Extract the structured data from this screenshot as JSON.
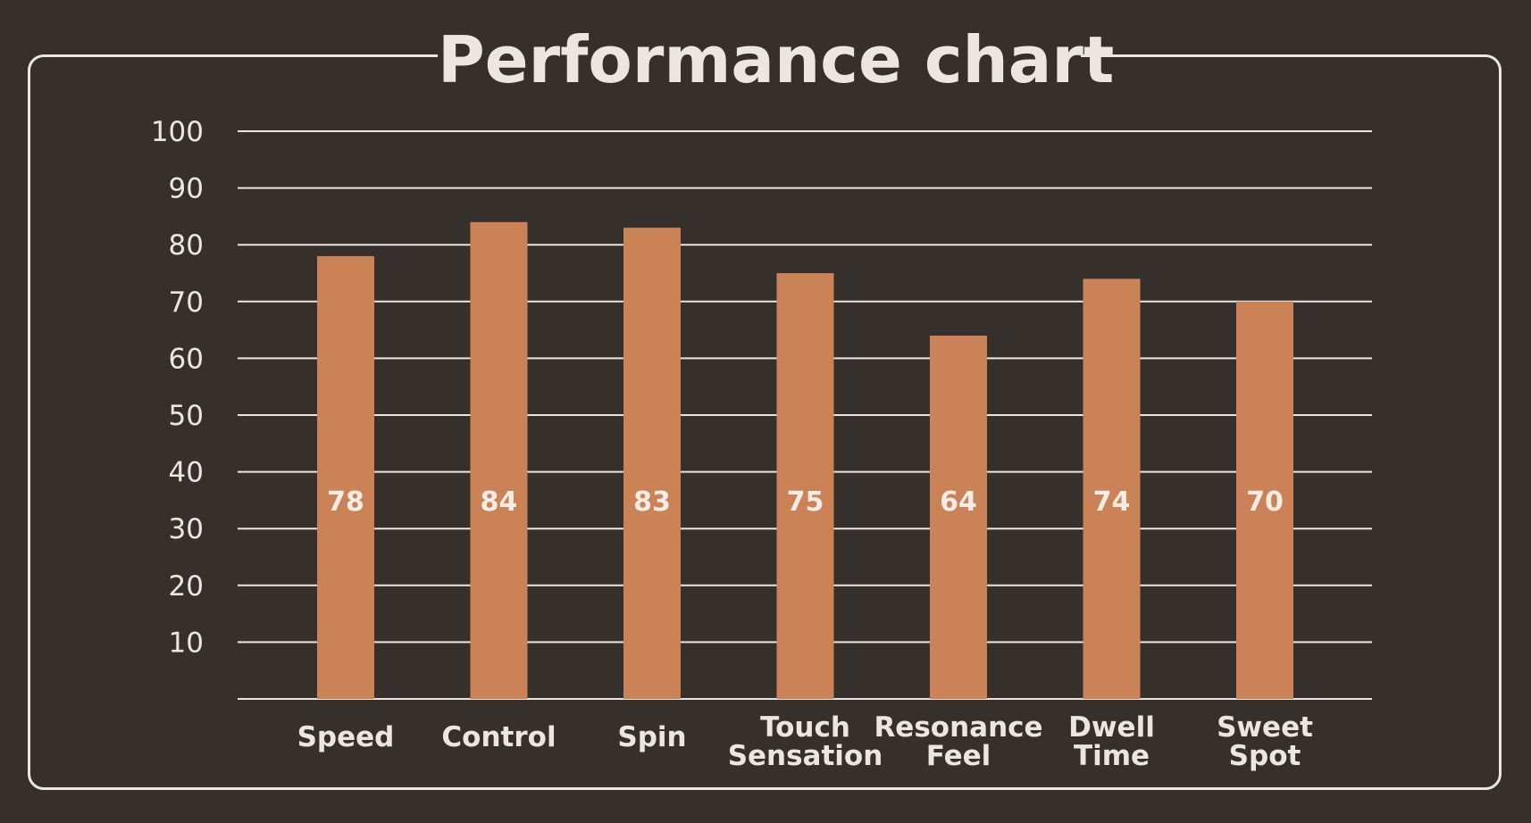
{
  "title": "Performance chart",
  "colors": {
    "background": "#36302c",
    "bar": "#cc8257",
    "text": "#ece6df",
    "grid": "#ece6df"
  },
  "chart_data": {
    "type": "bar",
    "title": "Performance chart",
    "xlabel": "",
    "ylabel": "",
    "categories": [
      [
        "Speed"
      ],
      [
        "Control"
      ],
      [
        "Spin"
      ],
      [
        "Touch",
        "Sensation"
      ],
      [
        "Resonance",
        "Feel"
      ],
      [
        "Dwell",
        "Time"
      ],
      [
        "Sweet",
        "Spot"
      ]
    ],
    "values": [
      78,
      84,
      83,
      75,
      64,
      74,
      70
    ],
    "ylim": [
      0,
      100
    ],
    "yticks": [
      "10",
      "20",
      "30",
      "40",
      "50",
      "60",
      "70",
      "80",
      "90",
      "100"
    ],
    "grid": true,
    "legend": "none"
  }
}
